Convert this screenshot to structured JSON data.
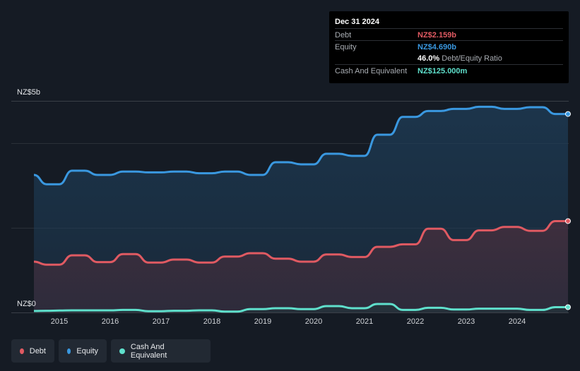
{
  "tooltip": {
    "date": "Dec 31 2024",
    "debt_label": "Debt",
    "debt_value": "NZ$2.159b",
    "equity_label": "Equity",
    "equity_value": "NZ$4.690b",
    "ratio_value": "46.0%",
    "ratio_label": "Debt/Equity Ratio",
    "cash_label": "Cash And Equivalent",
    "cash_value": "NZ$125.000m"
  },
  "colors": {
    "debt": "#e05a62",
    "equity": "#3a98e0",
    "cash": "#5fe0cc"
  },
  "legend": [
    "Debt",
    "Equity",
    "Cash And Equivalent"
  ],
  "chart_data": {
    "type": "area",
    "ylim": [
      0,
      5
    ],
    "y_unit": "NZ$ billions",
    "y_tick_labels": [
      "NZ$0",
      "NZ$5b"
    ],
    "x_tick_labels": [
      "2015",
      "2016",
      "2017",
      "2018",
      "2019",
      "2020",
      "2021",
      "2022",
      "2023",
      "2024"
    ],
    "x": [
      2014.5,
      2014.75,
      2015.0,
      2015.25,
      2015.5,
      2015.75,
      2016.0,
      2016.25,
      2016.5,
      2016.75,
      2017.0,
      2017.25,
      2017.5,
      2017.75,
      2018.0,
      2018.25,
      2018.5,
      2018.75,
      2019.0,
      2019.25,
      2019.5,
      2019.75,
      2020.0,
      2020.25,
      2020.5,
      2020.75,
      2021.0,
      2021.25,
      2021.5,
      2021.75,
      2022.0,
      2022.25,
      2022.5,
      2022.75,
      2023.0,
      2023.25,
      2023.5,
      2023.75,
      2024.0,
      2024.25,
      2024.5,
      2024.75,
      2025.0
    ],
    "series": [
      {
        "name": "Equity",
        "values": [
          3.25,
          3.03,
          3.03,
          3.35,
          3.35,
          3.25,
          3.25,
          3.33,
          3.33,
          3.31,
          3.31,
          3.33,
          3.33,
          3.29,
          3.29,
          3.33,
          3.33,
          3.25,
          3.25,
          3.55,
          3.55,
          3.5,
          3.5,
          3.75,
          3.75,
          3.7,
          3.7,
          4.2,
          4.2,
          4.62,
          4.62,
          4.76,
          4.76,
          4.81,
          4.81,
          4.86,
          4.86,
          4.81,
          4.81,
          4.85,
          4.85,
          4.69,
          4.69
        ]
      },
      {
        "name": "Debt",
        "values": [
          1.2,
          1.13,
          1.13,
          1.35,
          1.35,
          1.19,
          1.19,
          1.38,
          1.38,
          1.18,
          1.18,
          1.25,
          1.25,
          1.18,
          1.18,
          1.32,
          1.32,
          1.4,
          1.4,
          1.27,
          1.27,
          1.2,
          1.2,
          1.37,
          1.37,
          1.31,
          1.31,
          1.55,
          1.55,
          1.61,
          1.61,
          1.98,
          1.98,
          1.71,
          1.71,
          1.94,
          1.94,
          2.02,
          2.02,
          1.93,
          1.93,
          2.159,
          2.159
        ]
      },
      {
        "name": "Cash And Equivalent",
        "values": [
          0.035,
          0.04,
          0.045,
          0.05,
          0.05,
          0.05,
          0.05,
          0.06,
          0.06,
          0.03,
          0.03,
          0.04,
          0.04,
          0.05,
          0.05,
          0.02,
          0.02,
          0.08,
          0.08,
          0.1,
          0.1,
          0.08,
          0.08,
          0.15,
          0.15,
          0.1,
          0.1,
          0.2,
          0.2,
          0.06,
          0.06,
          0.11,
          0.11,
          0.07,
          0.07,
          0.09,
          0.09,
          0.09,
          0.09,
          0.06,
          0.06,
          0.125,
          0.125
        ]
      }
    ]
  }
}
